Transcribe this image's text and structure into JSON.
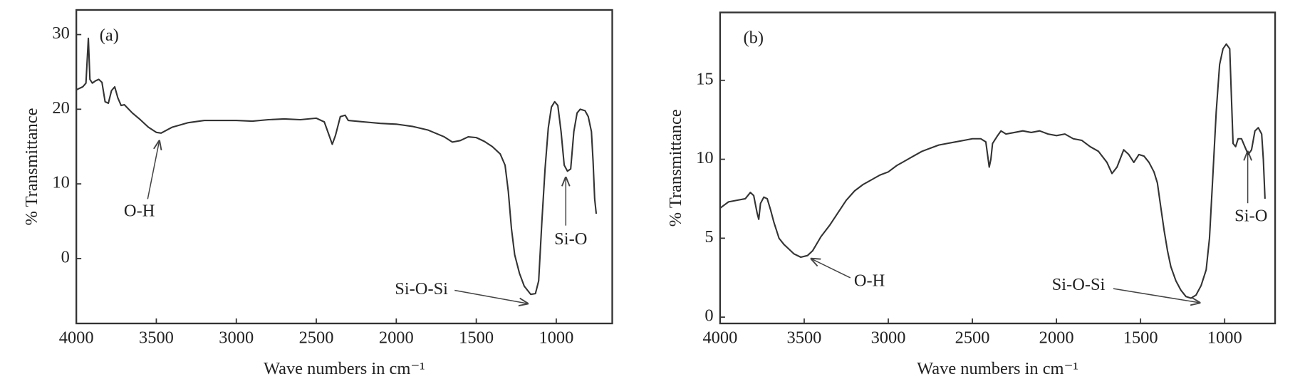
{
  "chart_data": [
    {
      "type": "line",
      "panel_label": "(a)",
      "xlabel": "Wave numbers in cm⁻¹",
      "ylabel": "% Transmittance",
      "xlim": [
        4000,
        650
      ],
      "ylim": [
        -8.7,
        33.3
      ],
      "xticks": [
        4000,
        3500,
        3000,
        2500,
        2000,
        1500,
        1000
      ],
      "yticks": [
        0,
        10,
        20,
        30
      ],
      "annotations": [
        "O-H",
        "Si-O-Si",
        "Si-O"
      ],
      "color": "#333333",
      "x": [
        4000,
        3960,
        3940,
        3925,
        3915,
        3900,
        3880,
        3860,
        3840,
        3820,
        3800,
        3780,
        3760,
        3740,
        3720,
        3700,
        3650,
        3600,
        3550,
        3500,
        3470,
        3400,
        3300,
        3200,
        3100,
        3000,
        2900,
        2800,
        2700,
        2600,
        2500,
        2450,
        2420,
        2400,
        2380,
        2350,
        2320,
        2300,
        2200,
        2100,
        2000,
        1900,
        1800,
        1700,
        1650,
        1600,
        1550,
        1500,
        1450,
        1400,
        1350,
        1320,
        1300,
        1280,
        1260,
        1230,
        1200,
        1160,
        1130,
        1110,
        1090,
        1070,
        1050,
        1030,
        1010,
        990,
        970,
        950,
        930,
        910,
        890,
        870,
        850,
        820,
        800,
        780,
        770,
        760,
        750
      ],
      "values": [
        22.6,
        23.0,
        23.5,
        29.5,
        24.0,
        23.5,
        23.8,
        24.0,
        23.6,
        21.0,
        20.8,
        22.5,
        23.0,
        21.5,
        20.5,
        20.6,
        19.5,
        18.6,
        17.6,
        16.9,
        16.8,
        17.6,
        18.2,
        18.5,
        18.5,
        18.5,
        18.4,
        18.6,
        18.7,
        18.6,
        18.8,
        18.3,
        16.5,
        15.3,
        16.5,
        19.0,
        19.2,
        18.5,
        18.3,
        18.1,
        18.0,
        17.7,
        17.2,
        16.3,
        15.6,
        15.8,
        16.3,
        16.2,
        15.7,
        15.0,
        14.0,
        12.5,
        9.0,
        4.0,
        0.5,
        -2.0,
        -3.7,
        -4.8,
        -4.7,
        -3.0,
        5.0,
        12.0,
        17.5,
        20.3,
        21.0,
        20.5,
        17.0,
        12.5,
        11.7,
        12.0,
        17.0,
        19.5,
        20.0,
        19.8,
        19.0,
        17.0,
        13.0,
        8.0,
        6.0
      ]
    },
    {
      "type": "line",
      "panel_label": "(b)",
      "xlabel": "Wave numbers in cm⁻¹",
      "ylabel": "% Transmittance",
      "xlim": [
        4000,
        700
      ],
      "ylim": [
        -0.4,
        19.3
      ],
      "xticks": [
        4000,
        3500,
        3000,
        2500,
        2000,
        1500,
        1000
      ],
      "yticks": [
        0,
        5,
        10,
        15
      ],
      "annotations": [
        "O-H",
        "Si-O-Si",
        "Si-O"
      ],
      "color": "#333333",
      "x": [
        4000,
        3950,
        3900,
        3850,
        3820,
        3800,
        3780,
        3770,
        3760,
        3740,
        3720,
        3700,
        3680,
        3650,
        3620,
        3600,
        3560,
        3520,
        3480,
        3450,
        3400,
        3350,
        3300,
        3250,
        3200,
        3150,
        3100,
        3050,
        3000,
        2950,
        2900,
        2850,
        2800,
        2750,
        2700,
        2650,
        2600,
        2550,
        2500,
        2450,
        2420,
        2400,
        2390,
        2380,
        2350,
        2330,
        2300,
        2250,
        2200,
        2150,
        2100,
        2050,
        2000,
        1950,
        1900,
        1850,
        1800,
        1750,
        1700,
        1670,
        1640,
        1600,
        1570,
        1540,
        1510,
        1480,
        1450,
        1420,
        1400,
        1380,
        1360,
        1340,
        1320,
        1290,
        1260,
        1230,
        1200,
        1170,
        1140,
        1110,
        1090,
        1070,
        1050,
        1030,
        1010,
        990,
        970,
        960,
        950,
        935,
        920,
        900,
        880,
        860,
        840,
        820,
        800,
        780,
        770,
        760
      ],
      "values": [
        6.9,
        7.3,
        7.4,
        7.5,
        7.9,
        7.7,
        6.6,
        6.2,
        7.2,
        7.6,
        7.5,
        6.8,
        6.0,
        5.0,
        4.6,
        4.4,
        4.0,
        3.8,
        3.9,
        4.2,
        5.1,
        5.8,
        6.6,
        7.4,
        8.0,
        8.4,
        8.7,
        9.0,
        9.2,
        9.6,
        9.9,
        10.2,
        10.5,
        10.7,
        10.9,
        11.0,
        11.1,
        11.2,
        11.3,
        11.3,
        11.1,
        9.5,
        10.0,
        11.0,
        11.5,
        11.8,
        11.6,
        11.7,
        11.8,
        11.7,
        11.8,
        11.6,
        11.5,
        11.6,
        11.3,
        11.2,
        10.8,
        10.5,
        9.8,
        9.1,
        9.5,
        10.6,
        10.3,
        9.8,
        10.3,
        10.2,
        9.8,
        9.2,
        8.5,
        7.0,
        5.5,
        4.2,
        3.2,
        2.3,
        1.7,
        1.3,
        1.2,
        1.4,
        2.0,
        3.0,
        5.0,
        9.0,
        13.0,
        16.0,
        17.0,
        17.3,
        17.0,
        14.0,
        11.0,
        10.8,
        11.3,
        11.3,
        10.8,
        10.3,
        10.6,
        11.8,
        12.0,
        11.6,
        10.0,
        7.5
      ]
    }
  ]
}
